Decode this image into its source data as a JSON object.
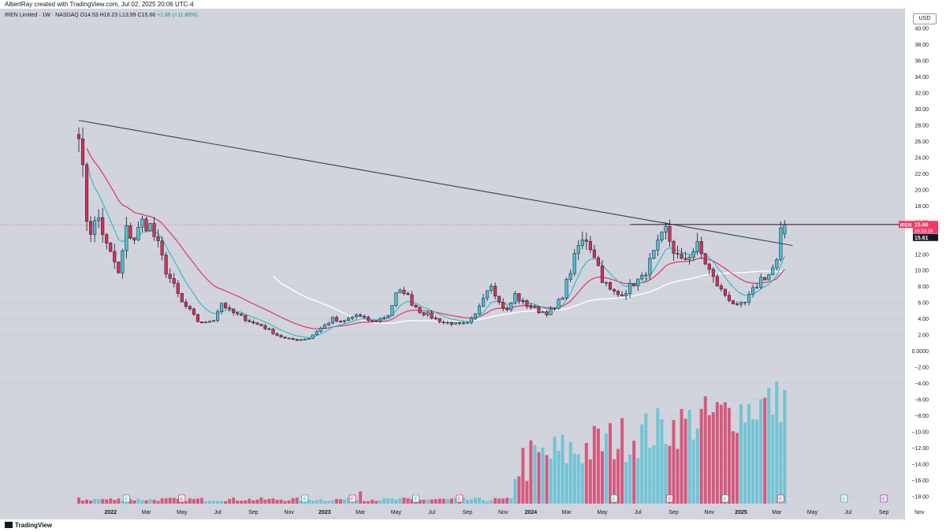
{
  "header": {
    "attribution": "AlbertRay created with TradingView.com, Jul 02, 2025 20:06 UTC-4"
  },
  "legend": {
    "symbol": "IREN Limited · 1W · NASDAQ",
    "open": "O14.53",
    "high": "H16.23",
    "low": "L13.99",
    "close": "C15.66",
    "change": "+1.66 (+11.86%)"
  },
  "currency": "USD",
  "footer": {
    "brand": "TradingView"
  },
  "colors": {
    "up": "#4fbfd3",
    "down": "#d7305e",
    "ema_fast": "#2bb9c8",
    "ema_slow": "#e0356a",
    "sma_long": "#ffffff",
    "trend": "#3a3e4a",
    "price_label": "#f23866",
    "background": "#d1d4dc"
  },
  "chart_data": {
    "type": "candlestick",
    "timeframe": "1W",
    "y_ticks": [
      40,
      38,
      36,
      34,
      32,
      30,
      28,
      26,
      24,
      22,
      20,
      18,
      16,
      14,
      12,
      10,
      8,
      6,
      4,
      2,
      0,
      -2,
      -4,
      -6,
      -8,
      -10,
      -12,
      -14,
      -16,
      -18
    ],
    "y_tick_labels": [
      "40.00",
      "38.00",
      "36.00",
      "34.00",
      "32.00",
      "30.00",
      "28.00",
      "26.00",
      "24.00",
      "22.00",
      "20.00",
      "18.00",
      "16.00",
      "14.00",
      "12.00",
      "10.00",
      "8.00",
      "6.00",
      "4.00",
      "2.00",
      "0.0000",
      "−2.00",
      "−4.00",
      "−6.00",
      "−8.00",
      "−10.00",
      "−12.00",
      "−14.00",
      "−16.00",
      "−18.00"
    ],
    "x_ticks": [
      {
        "label": "2022",
        "week": 8,
        "bold": true
      },
      {
        "label": "Mar",
        "week": 17
      },
      {
        "label": "May",
        "week": 26
      },
      {
        "label": "Jul",
        "week": 35
      },
      {
        "label": "Sep",
        "week": 44
      },
      {
        "label": "Nov",
        "week": 53
      },
      {
        "label": "2023",
        "week": 62,
        "bold": true
      },
      {
        "label": "Mar",
        "week": 71
      },
      {
        "label": "May",
        "week": 80
      },
      {
        "label": "Jul",
        "week": 89
      },
      {
        "label": "Sep",
        "week": 98
      },
      {
        "label": "Nov",
        "week": 107
      },
      {
        "label": "2024",
        "week": 114,
        "bold": true
      },
      {
        "label": "Mar",
        "week": 123
      },
      {
        "label": "May",
        "week": 132
      },
      {
        "label": "Jul",
        "week": 141
      },
      {
        "label": "Sep",
        "week": 150
      },
      {
        "label": "Nov",
        "week": 159
      },
      {
        "label": "2025",
        "week": 167,
        "bold": true
      },
      {
        "label": "Mar",
        "week": 176
      },
      {
        "label": "May",
        "week": 185
      },
      {
        "label": "Jul",
        "week": 194
      },
      {
        "label": "Sep",
        "week": 203
      },
      {
        "label": "Nov",
        "week": 212
      }
    ],
    "anchors": [
      [
        0,
        28.0
      ],
      [
        1,
        22.0
      ],
      [
        2,
        16.5
      ],
      [
        3,
        15.0
      ],
      [
        5,
        16.5
      ],
      [
        7,
        13.0
      ],
      [
        9,
        11.0
      ],
      [
        10,
        9.5
      ],
      [
        12,
        15.0
      ],
      [
        14,
        14.0
      ],
      [
        16,
        16.0
      ],
      [
        18,
        15.5
      ],
      [
        20,
        13.0
      ],
      [
        22,
        10.0
      ],
      [
        24,
        8.0
      ],
      [
        26,
        6.0
      ],
      [
        28,
        5.0
      ],
      [
        30,
        3.7
      ],
      [
        32,
        3.5
      ],
      [
        34,
        4.0
      ],
      [
        36,
        6.0
      ],
      [
        38,
        5.0
      ],
      [
        40,
        4.5
      ],
      [
        42,
        4.0
      ],
      [
        44,
        3.5
      ],
      [
        46,
        3.2
      ],
      [
        48,
        2.6
      ],
      [
        50,
        2.0
      ],
      [
        52,
        1.6
      ],
      [
        55,
        1.4
      ],
      [
        58,
        1.6
      ],
      [
        60,
        2.5
      ],
      [
        62,
        3.2
      ],
      [
        64,
        4.0
      ],
      [
        66,
        3.5
      ],
      [
        68,
        4.0
      ],
      [
        70,
        4.5
      ],
      [
        72,
        4.0
      ],
      [
        74,
        3.7
      ],
      [
        76,
        4.0
      ],
      [
        78,
        4.5
      ],
      [
        80,
        7.0
      ],
      [
        82,
        7.5
      ],
      [
        84,
        6.0
      ],
      [
        86,
        5.0
      ],
      [
        88,
        4.5
      ],
      [
        90,
        4.0
      ],
      [
        92,
        3.6
      ],
      [
        94,
        3.5
      ],
      [
        96,
        3.3
      ],
      [
        98,
        3.4
      ],
      [
        100,
        4.5
      ],
      [
        102,
        7.0
      ],
      [
        104,
        8.5
      ],
      [
        106,
        6.0
      ],
      [
        108,
        5.0
      ],
      [
        110,
        7.0
      ],
      [
        112,
        6.0
      ],
      [
        114,
        5.5
      ],
      [
        116,
        5.0
      ],
      [
        118,
        4.8
      ],
      [
        120,
        5.2
      ],
      [
        122,
        7.0
      ],
      [
        124,
        10.0
      ],
      [
        126,
        13.0
      ],
      [
        128,
        14.0
      ],
      [
        130,
        12.0
      ],
      [
        132,
        9.0
      ],
      [
        134,
        7.5
      ],
      [
        136,
        7.0
      ],
      [
        138,
        7.5
      ],
      [
        140,
        8.5
      ],
      [
        142,
        9.0
      ],
      [
        144,
        11.0
      ],
      [
        146,
        13.0
      ],
      [
        148,
        15.0
      ],
      [
        150,
        12.5
      ],
      [
        152,
        11.0
      ],
      [
        154,
        12.0
      ],
      [
        156,
        13.0
      ],
      [
        158,
        11.0
      ],
      [
        160,
        9.0
      ],
      [
        162,
        7.5
      ],
      [
        164,
        6.5
      ],
      [
        166,
        5.5
      ],
      [
        168,
        6.0
      ],
      [
        170,
        7.5
      ],
      [
        172,
        9.0
      ],
      [
        174,
        9.5
      ],
      [
        176,
        11.0
      ],
      [
        177,
        14.5
      ],
      [
        178,
        15.66
      ]
    ],
    "last_week": 178,
    "current_price": 15.66,
    "current_price_label": "15.66",
    "countdown": "16:53:28",
    "price_label_symbol": "IREN",
    "secondary_label": "15.61",
    "resistance_level": 15.7,
    "resistance_from_week": 139,
    "trendline": [
      [
        0,
        28.6
      ],
      [
        180,
        13.1
      ]
    ],
    "sma_from_week": 48,
    "volume_scale_max": 100,
    "earnings_weeks": [
      12,
      26,
      57,
      69,
      85,
      96,
      135,
      149,
      163,
      177,
      193
    ],
    "dividend_weeks": [
      203
    ],
    "earnings_label": "E"
  }
}
